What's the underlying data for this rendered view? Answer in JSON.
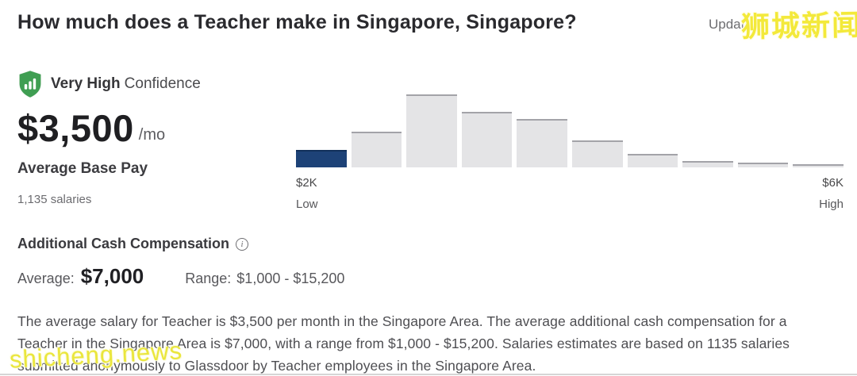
{
  "header": {
    "title": "How much does a Teacher make in Singapore, Singapore?",
    "updated_label": "Updated"
  },
  "watermarks": {
    "top_right": "狮城新闻",
    "bottom_left": "shicheng.news"
  },
  "confidence": {
    "level": "Very High",
    "suffix": "Confidence"
  },
  "base_pay": {
    "amount": "$3,500",
    "period": "/mo",
    "label": "Average Base Pay",
    "sample_size": "1,135 salaries"
  },
  "chart_data": {
    "type": "bar",
    "title": "Base pay distribution histogram",
    "values": [
      24,
      49,
      100,
      76,
      66,
      37,
      19,
      9,
      6,
      4
    ],
    "values_unit": "percent of tallest bar (counts not labeled on screen)",
    "x_start_label": "$2K",
    "x_start_caption": "Low",
    "x_end_label": "$6K",
    "x_end_caption": "High",
    "highlight_index": 0,
    "highlight_color": "#1d4277",
    "bar_color": "#e4e4e6",
    "bar_top_edge_color": "#a3a3a8",
    "legend": "none",
    "grid": "off"
  },
  "additional_comp": {
    "heading": "Additional Cash Compensation",
    "average_label": "Average:",
    "average_value": "$7,000",
    "range_label": "Range:",
    "range_value": "$1,000 - $15,200"
  },
  "description": "The average salary for Teacher is $3,500 per month in the Singapore Area. The average additional cash compensation for a Teacher in the Singapore Area is $7,000, with a range from $1,000 - $15,200. Salaries estimates are based on 1135 salaries submitted anonymously to Glassdoor by Teacher employees in the Singapore Area.",
  "colors": {
    "confidence_green": "#3f9e52",
    "accent_navy": "#1d4277",
    "watermark_yellow": "#f3e93a"
  }
}
